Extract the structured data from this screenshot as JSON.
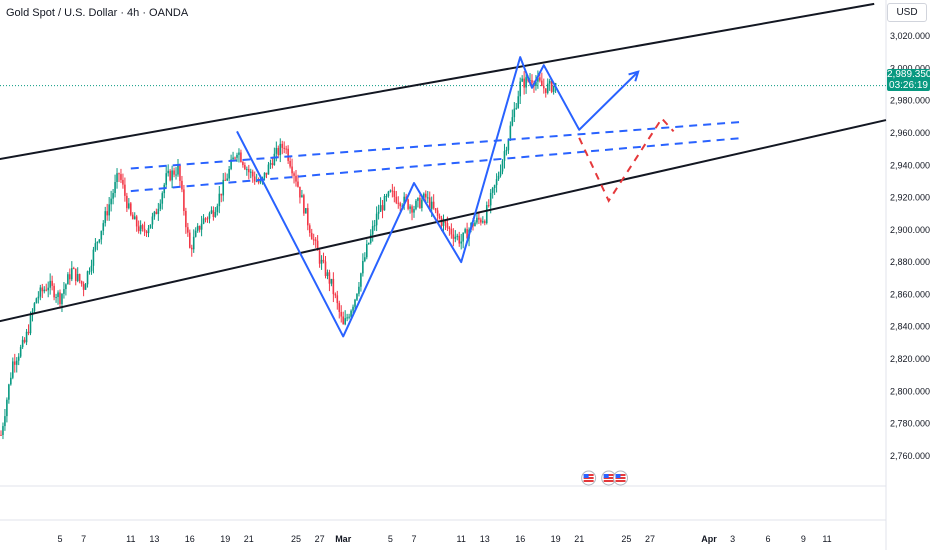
{
  "header": {
    "title": "Gold Spot / U.S. Dollar · 4h · OANDA",
    "currency": "USD"
  },
  "price_tag": {
    "price": "2,989.350",
    "countdown": "03:26:19",
    "color": "#089981"
  },
  "colors": {
    "up": "#089981",
    "down": "#f23645",
    "trend": "#131722",
    "forecast": "#2962ff",
    "bear": "#e5383b"
  },
  "chart_data": {
    "type": "candlestick",
    "instrument": "Gold Spot / U.S. Dollar",
    "timeframe": "4h",
    "ylim": [
      2750,
      3030
    ],
    "y_ticks": [
      3020,
      3000,
      2980,
      2960,
      2940,
      2920,
      2900,
      2880,
      2860,
      2840,
      2820,
      2800,
      2780,
      2760
    ],
    "x_ticks": [
      {
        "label": "5",
        "day": 5
      },
      {
        "label": "7",
        "day": 7
      },
      {
        "label": "11",
        "day": 11
      },
      {
        "label": "13",
        "day": 13
      },
      {
        "label": "16",
        "day": 16
      },
      {
        "label": "19",
        "day": 19
      },
      {
        "label": "21",
        "day": 21
      },
      {
        "label": "25",
        "day": 25
      },
      {
        "label": "27",
        "day": 27
      },
      {
        "label": "Mar",
        "day": 29
      },
      {
        "label": "5",
        "day": 33
      },
      {
        "label": "7",
        "day": 35
      },
      {
        "label": "11",
        "day": 39
      },
      {
        "label": "13",
        "day": 41
      },
      {
        "label": "16",
        "day": 44
      },
      {
        "label": "19",
        "day": 47
      },
      {
        "label": "21",
        "day": 49
      },
      {
        "label": "25",
        "day": 53
      },
      {
        "label": "27",
        "day": 55
      },
      {
        "label": "Apr",
        "day": 60
      },
      {
        "label": "3",
        "day": 62
      },
      {
        "label": "6",
        "day": 65
      },
      {
        "label": "9",
        "day": 68
      },
      {
        "label": "11",
        "day": 70
      }
    ],
    "last_price": 2989.35,
    "path_points": [
      [
        0.0,
        2773
      ],
      [
        1.0,
        2818
      ],
      [
        2.0,
        2830
      ],
      [
        3.0,
        2858
      ],
      [
        4.0,
        2866
      ],
      [
        5.0,
        2858
      ],
      [
        6.0,
        2875
      ],
      [
        7.0,
        2865
      ],
      [
        8.0,
        2890
      ],
      [
        9.0,
        2912
      ],
      [
        10.0,
        2935
      ],
      [
        11.0,
        2908
      ],
      [
        12.0,
        2898
      ],
      [
        13.0,
        2908
      ],
      [
        14.0,
        2932
      ],
      [
        15.0,
        2938
      ],
      [
        16.0,
        2888
      ],
      [
        17.0,
        2905
      ],
      [
        18.0,
        2912
      ],
      [
        19.0,
        2930
      ],
      [
        20.0,
        2950
      ],
      [
        21.0,
        2936
      ],
      [
        22.0,
        2928
      ],
      [
        23.0,
        2944
      ],
      [
        24.0,
        2953
      ],
      [
        25.0,
        2932
      ],
      [
        26.0,
        2905
      ],
      [
        27.0,
        2882
      ],
      [
        28.0,
        2866
      ],
      [
        29.0,
        2840
      ],
      [
        30.0,
        2858
      ],
      [
        31.0,
        2888
      ],
      [
        32.0,
        2912
      ],
      [
        33.0,
        2922
      ],
      [
        34.0,
        2918
      ],
      [
        35.0,
        2914
      ],
      [
        36.0,
        2920
      ],
      [
        37.0,
        2908
      ],
      [
        38.0,
        2900
      ],
      [
        39.0,
        2893
      ],
      [
        40.0,
        2904
      ],
      [
        41.0,
        2908
      ],
      [
        42.0,
        2930
      ],
      [
        43.0,
        2958
      ],
      [
        44.0,
        2990
      ],
      [
        45.0,
        2994
      ],
      [
        46.0,
        2988
      ],
      [
        47.0,
        2989.35
      ]
    ],
    "trend_lines": [
      {
        "name": "upper-channel",
        "points": [
          [
            -10.0,
            2931
          ],
          [
            74.0,
            3040
          ]
        ],
        "style": "solid"
      },
      {
        "name": "lower-channel",
        "points": [
          [
            -10.0,
            2827
          ],
          [
            75.0,
            2968
          ]
        ],
        "style": "solid"
      },
      {
        "name": "dashed-resistance-1",
        "points": [
          [
            11.0,
            2938
          ],
          [
            63.0,
            2967
          ]
        ],
        "style": "dashed"
      },
      {
        "name": "dashed-resistance-2",
        "points": [
          [
            11.0,
            2924
          ],
          [
            63.0,
            2957
          ]
        ],
        "style": "dashed"
      }
    ],
    "bullish_projection": [
      [
        20.0,
        2961
      ],
      [
        29.0,
        2834
      ],
      [
        35.0,
        2929
      ],
      [
        39.0,
        2880
      ],
      [
        44.0,
        3007
      ],
      [
        45.0,
        2988
      ],
      [
        46.0,
        3002
      ],
      [
        49.0,
        2962
      ],
      [
        54.0,
        2998
      ]
    ],
    "bearish_projection": [
      [
        49.0,
        2957
      ],
      [
        51.5,
        2918
      ],
      [
        56.0,
        2969
      ],
      [
        57.0,
        2961
      ]
    ],
    "event_markers": [
      {
        "day": 49.8
      },
      {
        "day": 51.5
      },
      {
        "day": 52.5
      }
    ]
  }
}
